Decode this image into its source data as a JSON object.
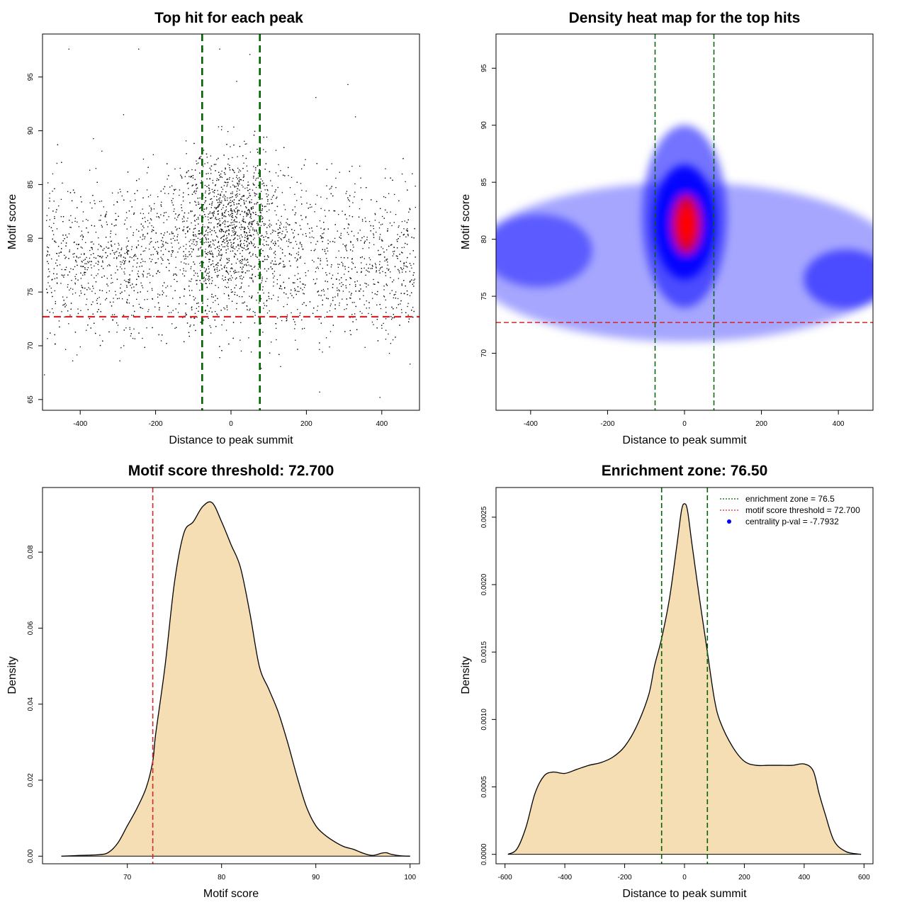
{
  "colors": {
    "ink": "#000000",
    "threshold_red": "#d62728",
    "zone_green": "#006400",
    "fill_wheat": "#f5deb3",
    "density_low": "#ffffff",
    "density_mid": "#0000ff",
    "density_high": "#ff0000",
    "legend_dot": "#0000ff"
  },
  "chart_data": [
    {
      "type": "scatter",
      "title": "Top hit for each peak",
      "xlabel": "Distance to peak summit",
      "ylabel": "Motif score",
      "xlim": [
        -500,
        500
      ],
      "ylim": [
        64,
        99
      ],
      "xticks": [
        -400,
        -200,
        0,
        200,
        400
      ],
      "yticks": [
        65,
        70,
        75,
        80,
        85,
        90,
        95
      ],
      "hlines": [
        72.7
      ],
      "vlines": [
        -76.5,
        76.5
      ],
      "point_count": 4200,
      "outliers": [
        {
          "x": -430,
          "y": 97.6
        },
        {
          "x": -245,
          "y": 97.6
        },
        {
          "x": -75,
          "y": 97.6
        },
        {
          "x": -30,
          "y": 97.6
        },
        {
          "x": 50,
          "y": 97.1
        },
        {
          "x": 15,
          "y": 94.6
        },
        {
          "x": 225,
          "y": 93.1
        },
        {
          "x": 310,
          "y": 94.3
        },
        {
          "x": 330,
          "y": 91.3
        },
        {
          "x": -285,
          "y": 91.5
        },
        {
          "x": -495,
          "y": 67.3
        },
        {
          "x": 235,
          "y": 65.7
        },
        {
          "x": 395,
          "y": 65.2
        },
        {
          "x": -400,
          "y": 69.9
        },
        {
          "x": 80,
          "y": 67.9
        },
        {
          "x": 475,
          "y": 68.3
        },
        {
          "x": -420,
          "y": 68.6
        },
        {
          "x": -295,
          "y": 68.6
        },
        {
          "x": -30,
          "y": 68.9
        },
        {
          "x": 420,
          "y": 69.3
        }
      ]
    },
    {
      "type": "heatmap",
      "title": "Density heat map for the top hits",
      "xlabel": "Distance to peak summit",
      "ylabel": "Motif score",
      "xlim": [
        -490,
        490
      ],
      "ylim": [
        65,
        98
      ],
      "xticks": [
        -400,
        -200,
        0,
        200,
        400
      ],
      "yticks": [
        70,
        75,
        80,
        85,
        90,
        95
      ],
      "hlines": [
        72.7
      ],
      "vlines": [
        -76.5,
        76.5
      ],
      "density_peaks": [
        {
          "x": 5,
          "y": 81.3,
          "weight": 1.0
        },
        {
          "x": -380,
          "y": 78.5,
          "weight": 0.35
        },
        {
          "x": 420,
          "y": 76.5,
          "weight": 0.35
        }
      ]
    },
    {
      "type": "area",
      "title": "Motif score threshold: 72.700",
      "xlabel": "Motif score",
      "ylabel": "Density",
      "xlim": [
        61,
        101
      ],
      "ylim": [
        -0.002,
        0.097
      ],
      "xticks": [
        70,
        80,
        90,
        100
      ],
      "yticks": [
        0.0,
        0.02,
        0.04,
        0.06,
        0.08
      ],
      "ytick_labels": [
        "0.00",
        "0.02",
        "0.04",
        "0.06",
        "0.08"
      ],
      "vlines": [
        72.7
      ],
      "x": [
        63,
        65,
        67,
        68,
        69,
        70,
        71,
        72,
        72.7,
        73,
        74,
        75,
        76,
        77,
        78,
        79,
        80,
        81,
        82,
        83,
        84,
        85,
        86,
        87,
        88,
        89,
        90,
        91,
        92,
        93,
        94,
        95,
        96,
        97,
        97.5,
        98,
        99,
        100
      ],
      "y": [
        0.0,
        0.0002,
        0.0004,
        0.001,
        0.0035,
        0.008,
        0.0125,
        0.018,
        0.025,
        0.032,
        0.05,
        0.072,
        0.085,
        0.088,
        0.092,
        0.093,
        0.088,
        0.082,
        0.076,
        0.064,
        0.05,
        0.044,
        0.038,
        0.03,
        0.021,
        0.013,
        0.008,
        0.0055,
        0.0038,
        0.0025,
        0.0018,
        0.0008,
        0.0002,
        0.0008,
        0.0009,
        0.0005,
        0.0001,
        0.0
      ]
    },
    {
      "type": "area",
      "title": "Enrichment zone: 76.50",
      "xlabel": "Distance to peak summit",
      "ylabel": "Density",
      "xlim": [
        -630,
        630
      ],
      "ylim": [
        -7e-05,
        0.00272
      ],
      "xticks": [
        -600,
        -400,
        -200,
        0,
        200,
        400,
        600
      ],
      "yticks": [
        0.0,
        0.0005,
        0.001,
        0.0015,
        0.002,
        0.0025
      ],
      "ytick_labels": [
        "0.0000",
        "0.0005",
        "0.0010",
        "0.0015",
        "0.0020",
        "0.0025"
      ],
      "vlines": [
        -76.5,
        76.5
      ],
      "x": [
        -590,
        -560,
        -530,
        -500,
        -470,
        -440,
        -400,
        -360,
        -320,
        -280,
        -240,
        -200,
        -160,
        -120,
        -100,
        -76.5,
        -50,
        -25,
        -10,
        0,
        10,
        25,
        50,
        76.5,
        100,
        120,
        160,
        200,
        240,
        280,
        320,
        360,
        400,
        430,
        450,
        470,
        500,
        540,
        590
      ],
      "y": [
        0.0,
        4e-05,
        0.0002,
        0.00045,
        0.00058,
        0.00061,
        0.0006,
        0.00063,
        0.00066,
        0.00068,
        0.00072,
        0.0008,
        0.00095,
        0.00118,
        0.0014,
        0.0016,
        0.0019,
        0.0023,
        0.00255,
        0.0026,
        0.00255,
        0.0023,
        0.0019,
        0.0015,
        0.00115,
        0.00098,
        0.0008,
        0.00069,
        0.00066,
        0.00066,
        0.00066,
        0.00066,
        0.00067,
        0.00062,
        0.00045,
        0.0003,
        0.0001,
        2e-05,
        0.0
      ],
      "legend": {
        "position": "top-right",
        "entries": [
          {
            "label": "enrichment zone = 76.5",
            "style": "dotted",
            "color": "#006400"
          },
          {
            "label": "motif score threshold = 72.700",
            "style": "dotted",
            "color": "#d62728"
          },
          {
            "label": "centrality p-val = -7.7932",
            "style": "point",
            "color": "#0000ff"
          }
        ]
      }
    }
  ]
}
